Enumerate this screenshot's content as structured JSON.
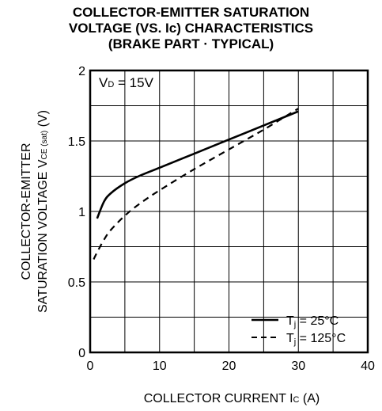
{
  "chart_data": {
    "type": "line",
    "title_lines": [
      "COLLECTOR-EMITTER SATURATION",
      "VOLTAGE (VS. Ic) CHARACTERISTICS",
      "(BRAKE PART · TYPICAL)"
    ],
    "xlabel": {
      "main": "COLLECTOR CURRENT  I",
      "sub": "C",
      "unit": " (A)"
    },
    "ylabel": {
      "line1": "COLLECTOR-EMITTER",
      "line2_main": "SATURATION VOLTAGE  V",
      "line2_sub": "CE (sat)",
      "line2_unit": " (V)"
    },
    "xlim": [
      0,
      40
    ],
    "ylim": [
      0,
      2
    ],
    "x_ticks": [
      0,
      10,
      20,
      30,
      40
    ],
    "x_tick_labels": [
      "0",
      "10",
      "20",
      "30",
      "40"
    ],
    "y_ticks": [
      0,
      0.5,
      1,
      1.5,
      2
    ],
    "y_tick_labels": [
      "0",
      "0.5",
      "1",
      "1.5",
      "2"
    ],
    "x_minor_step": 5,
    "y_minor_step": 0.25,
    "grid": true,
    "annotation": {
      "main": "V",
      "sub": "D",
      "rest": " = 15V"
    },
    "legend_position": "bottom-right",
    "series": [
      {
        "name": "Tj = 25°C",
        "label_main": "T",
        "label_sub": "j",
        "label_rest": " = 25°C",
        "style": "solid",
        "x": [
          1,
          2,
          3,
          5,
          7,
          10,
          15,
          20,
          25,
          28,
          30
        ],
        "y": [
          0.95,
          1.07,
          1.13,
          1.2,
          1.25,
          1.31,
          1.41,
          1.51,
          1.61,
          1.67,
          1.71
        ]
      },
      {
        "name": "Tj = 125°C",
        "label_main": "T",
        "label_sub": "j",
        "label_rest": " = 125°C",
        "style": "dashed",
        "x": [
          0.5,
          1,
          2,
          3,
          5,
          7,
          10,
          15,
          20,
          25,
          28,
          30
        ],
        "y": [
          0.66,
          0.71,
          0.8,
          0.87,
          0.97,
          1.05,
          1.15,
          1.3,
          1.44,
          1.58,
          1.67,
          1.73
        ]
      }
    ]
  }
}
